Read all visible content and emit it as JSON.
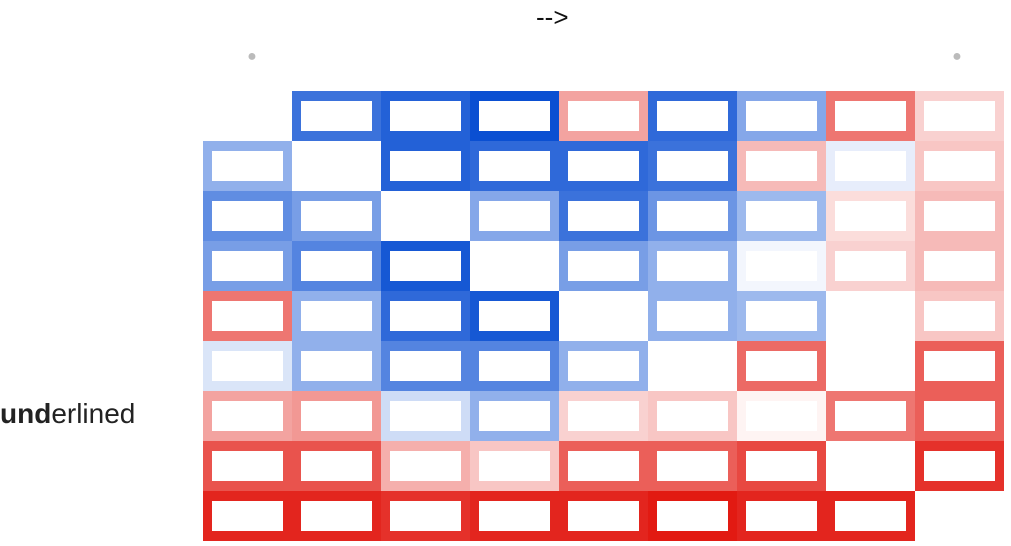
{
  "header": {
    "arrow": "-->"
  },
  "row_label": {
    "bold_part": "und",
    "rest": "erlined"
  },
  "chart_data": {
    "type": "heatmap",
    "title": "",
    "rows": 9,
    "cols": 9,
    "colormap": {
      "low": "#0a4fd2",
      "mid": "#ffffff",
      "high": "#e21a12"
    },
    "value_range": [
      -1,
      1
    ],
    "cell_labels": "obscured",
    "values": [
      [
        null,
        -0.8,
        -0.9,
        -1.0,
        0.4,
        -0.85,
        -0.5,
        0.6,
        0.2
      ],
      [
        -0.45,
        0.0,
        -0.9,
        -0.85,
        -0.85,
        -0.8,
        0.3,
        -0.1,
        0.25
      ],
      [
        -0.65,
        -0.55,
        0.0,
        -0.5,
        -0.8,
        -0.6,
        -0.4,
        0.15,
        0.3
      ],
      [
        -0.55,
        -0.7,
        -0.95,
        0.0,
        -0.55,
        -0.45,
        -0.05,
        0.2,
        0.3
      ],
      [
        0.6,
        -0.45,
        -0.85,
        -0.95,
        0.0,
        -0.45,
        -0.4,
        0.0,
        0.25
      ],
      [
        -0.15,
        -0.45,
        -0.7,
        -0.7,
        -0.45,
        0.0,
        0.65,
        0.0,
        0.7
      ],
      [
        0.4,
        0.45,
        -0.2,
        -0.45,
        0.2,
        0.25,
        0.05,
        0.6,
        0.7
      ],
      [
        0.75,
        0.75,
        0.35,
        0.25,
        0.7,
        0.7,
        0.8,
        0.0,
        0.9
      ],
      [
        0.95,
        0.95,
        0.9,
        0.95,
        0.95,
        1.0,
        0.95,
        0.95,
        null
      ]
    ]
  }
}
